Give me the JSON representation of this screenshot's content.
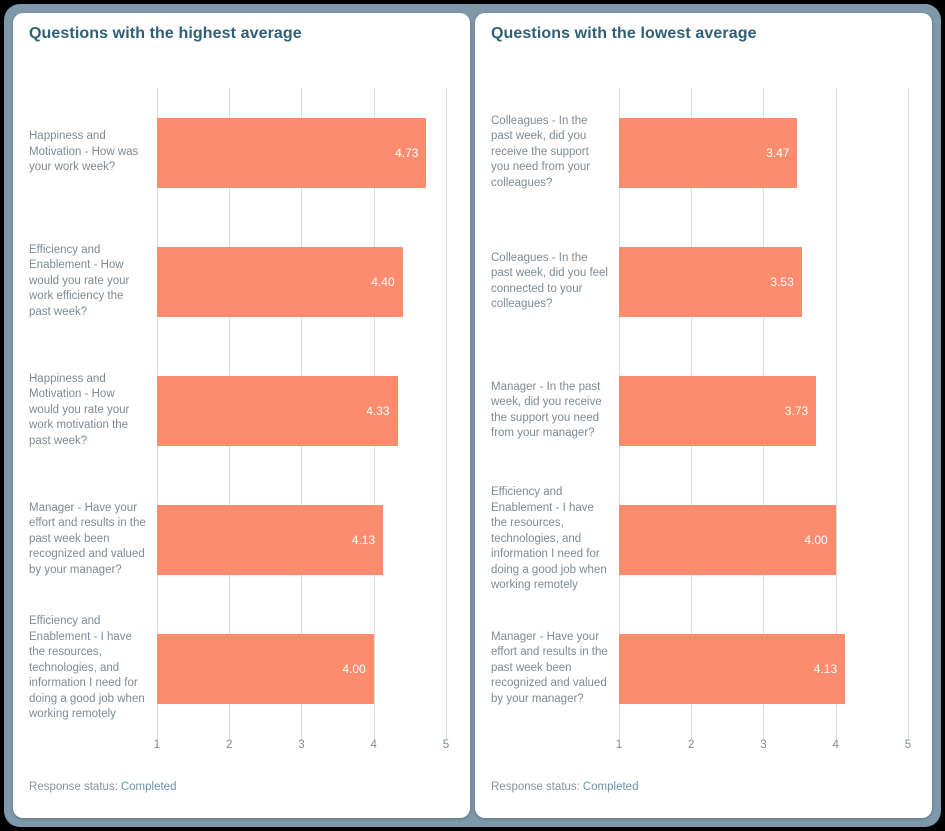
{
  "colors": {
    "page_background": "#000000",
    "frame": "#7E99AA",
    "card_background": "#FFFFFF",
    "bar": "#FC8C6E",
    "title_text": "#2F5F78",
    "category_text": "#7E8A93",
    "axis_text": "#7E8A93",
    "gridline": "#DCDCDC",
    "value_text": "#FFFFFF",
    "status_label_text": "#8B9299",
    "status_value_text": "#6596AC"
  },
  "panels": [
    {
      "title": "Questions with the highest average",
      "status": {
        "label": "Response status:",
        "value": "Completed"
      }
    },
    {
      "title": "Questions with the lowest average",
      "status": {
        "label": "Response status:",
        "value": "Completed"
      }
    }
  ],
  "chart_data": [
    {
      "type": "bar",
      "orientation": "horizontal",
      "title": "Questions with the highest average",
      "categories": [
        "Happiness and Motivation - How was your work week?",
        "Efficiency and Enablement - How would you rate your work efficiency the past week?",
        "Happiness and Motivation - How would you rate your work motivation the past week?",
        "Manager - Have your effort and results in the past week been recognized and valued by your manager?",
        "Efficiency and Enablement - I have the resources, technologies, and information I need for doing a good job when working remotely"
      ],
      "values": [
        4.73,
        4.4,
        4.33,
        4.13,
        4.0
      ],
      "value_labels": [
        "4.73",
        "4.40",
        "4.33",
        "4.13",
        "4.00"
      ],
      "xticks": [
        1,
        2,
        3,
        4,
        5
      ],
      "xlim": [
        1,
        5.18
      ],
      "grid": true,
      "legend": false
    },
    {
      "type": "bar",
      "orientation": "horizontal",
      "title": "Questions with the lowest average",
      "categories": [
        "Colleagues - In the past week, did you receive the support you need from your colleagues?",
        "Colleagues - In the past week, did you feel connected to your colleagues?",
        "Manager - In the past week, did you receive the support you need from your manager?",
        "Efficiency and Enablement - I have the resources, technologies, and information I need for doing a good job when working remotely",
        "Manager - Have your effort and results in the past week been recognized and valued by your manager?"
      ],
      "values": [
        3.47,
        3.53,
        3.73,
        4.0,
        4.13
      ],
      "value_labels": [
        "3.47",
        "3.53",
        "3.73",
        "4.00",
        "4.13"
      ],
      "xticks": [
        1,
        2,
        3,
        4,
        5
      ],
      "xlim": [
        1,
        5.18
      ],
      "grid": true,
      "legend": false
    }
  ]
}
